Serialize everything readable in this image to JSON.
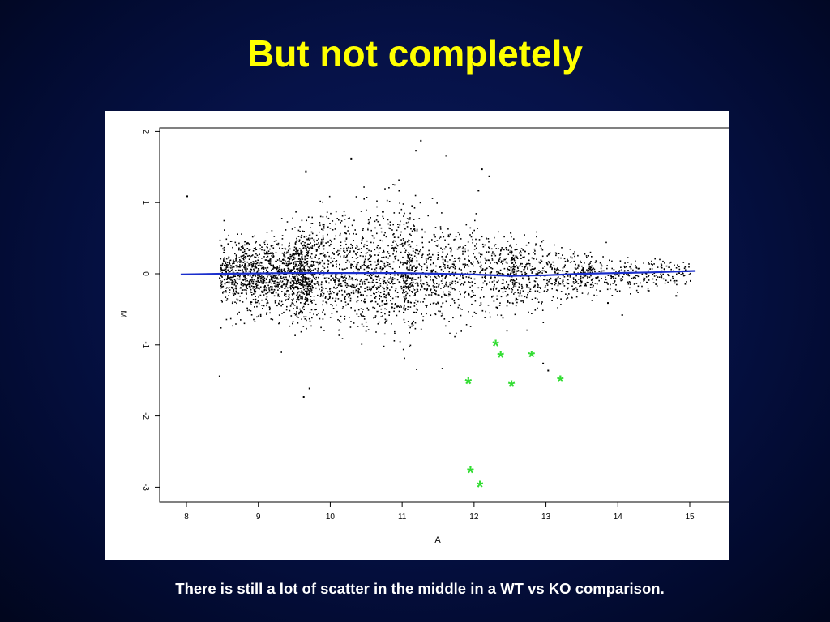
{
  "slide": {
    "title": "But not completely",
    "caption": "There is still a lot of scatter in the middle in a WT vs KO comparison."
  },
  "chart_data": {
    "type": "scatter",
    "title": "",
    "xlabel": "A",
    "ylabel": "M",
    "xlim": [
      7.75,
      15.35
    ],
    "ylim": [
      -3.3,
      2.2
    ],
    "xticks": [
      "8",
      "9",
      "10",
      "11",
      "12",
      "13",
      "14",
      "15"
    ],
    "yticks": [
      "2",
      "1",
      "0",
      "-1",
      "-2",
      "-3"
    ],
    "grid": false,
    "cloud": {
      "description_count": 4000,
      "color": "#000000",
      "x_range": [
        8.3,
        15.0
      ],
      "note": "dense MA-plot point cloud centred on M=0, widest spread between A=10 and A=11.5, narrowing toward high A"
    },
    "outlier_points": [
      {
        "x": 8.0,
        "y": 1.1
      },
      {
        "x": 8.45,
        "y": -1.43
      },
      {
        "x": 9.62,
        "y": -1.72
      },
      {
        "x": 9.7,
        "y": -1.6
      },
      {
        "x": 11.25,
        "y": 1.88
      },
      {
        "x": 11.18,
        "y": 1.74
      },
      {
        "x": 11.6,
        "y": 1.67
      },
      {
        "x": 12.1,
        "y": 1.48
      },
      {
        "x": 12.2,
        "y": 1.38
      },
      {
        "x": 12.05,
        "y": 1.18
      },
      {
        "x": 10.28,
        "y": 1.63
      },
      {
        "x": 9.65,
        "y": 1.45
      },
      {
        "x": 13.02,
        "y": -1.35
      },
      {
        "x": 12.95,
        "y": -1.25
      },
      {
        "x": 14.05,
        "y": -0.57
      },
      {
        "x": 14.8,
        "y": -0.3
      },
      {
        "x": 15.0,
        "y": -0.09
      },
      {
        "x": 13.85,
        "y": -0.4
      }
    ],
    "highlighted_points": {
      "symbol": "*",
      "color": "#33dd33",
      "points": [
        {
          "x": 12.3,
          "y": -0.97
        },
        {
          "x": 12.37,
          "y": -1.13
        },
        {
          "x": 12.8,
          "y": -1.12
        },
        {
          "x": 11.92,
          "y": -1.5
        },
        {
          "x": 12.52,
          "y": -1.54
        },
        {
          "x": 13.2,
          "y": -1.47
        },
        {
          "x": 11.95,
          "y": -2.75
        },
        {
          "x": 12.08,
          "y": -2.95
        }
      ]
    },
    "loess_line": {
      "color": "#1a2ecc",
      "points": [
        {
          "x": 7.92,
          "y": -0.01
        },
        {
          "x": 8.5,
          "y": 0.0
        },
        {
          "x": 9.5,
          "y": 0.01
        },
        {
          "x": 10.5,
          "y": 0.01
        },
        {
          "x": 11.0,
          "y": 0.01
        },
        {
          "x": 11.5,
          "y": 0.0
        },
        {
          "x": 12.0,
          "y": -0.01
        },
        {
          "x": 12.5,
          "y": -0.03
        },
        {
          "x": 13.0,
          "y": -0.02
        },
        {
          "x": 13.5,
          "y": 0.0
        },
        {
          "x": 14.0,
          "y": 0.01
        },
        {
          "x": 14.5,
          "y": 0.02
        },
        {
          "x": 15.08,
          "y": 0.04
        }
      ]
    }
  }
}
